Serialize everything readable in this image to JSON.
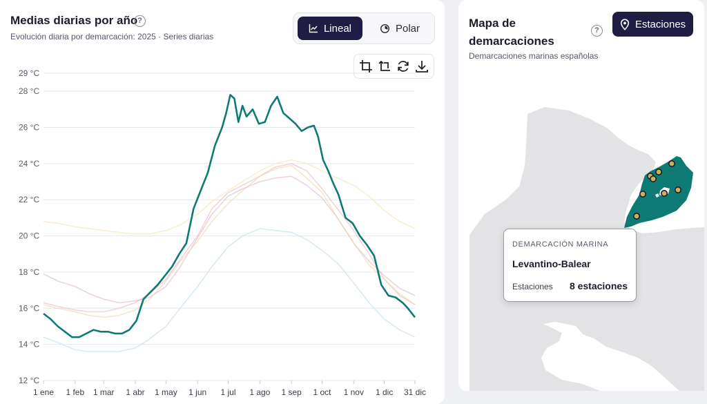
{
  "chart_panel": {
    "title": "Medias diarias por año",
    "subtitle": "Evolución diaria por demarcación: 2025 · Series diarias",
    "help_glyph": "?",
    "view_toggle": {
      "lineal_label": "Lineal",
      "polar_label": "Polar",
      "selected": "Lineal"
    },
    "toolbox_icons": [
      "crop-icon",
      "undo-crop-icon",
      "restore-icon",
      "download-icon"
    ]
  },
  "map_panel": {
    "title_line1": "Mapa de",
    "title_line2": "demarcaciones",
    "subtitle": "Demarcaciones marinas españolas",
    "help_glyph": "?",
    "stations_button_label": "Estaciones",
    "region_color": "#0e7a74",
    "tooltip": {
      "header": "DEMARCACIÓN MARINA",
      "name": "Levantino-Balear",
      "stations_label": "Estaciones",
      "stations_value": "8 estaciones"
    }
  },
  "chart_data": {
    "type": "line",
    "title": "",
    "xlabel": "",
    "ylabel": "",
    "ylim": [
      12,
      29
    ],
    "xlim": [
      1,
      365
    ],
    "y_ticks": [
      "12 °C",
      "14 °C",
      "16 °C",
      "18 °C",
      "20 °C",
      "22 °C",
      "24 °C",
      "26 °C",
      "28 °C",
      "29 °C"
    ],
    "y_tick_values": [
      12,
      14,
      16,
      18,
      20,
      22,
      24,
      26,
      28,
      29
    ],
    "x_ticks": [
      "1 ene",
      "1 feb",
      "1 mar",
      "1 abr",
      "1 may",
      "1 jun",
      "1 jul",
      "1 ago",
      "1 sep",
      "1 oct",
      "1 nov",
      "1 dic",
      "31 dic"
    ],
    "x_tick_days": [
      1,
      32,
      60,
      91,
      121,
      152,
      182,
      213,
      244,
      274,
      305,
      335,
      365
    ],
    "grid": true,
    "legend": "none",
    "series": [
      {
        "color": "#0e7a74",
        "width": 2.6,
        "opacity": 1,
        "x": [
          1,
          8,
          15,
          22,
          29,
          36,
          43,
          50,
          57,
          64,
          71,
          78,
          85,
          92,
          99,
          106,
          113,
          120,
          127,
          134,
          141,
          148,
          155,
          162,
          169,
          176,
          180,
          184,
          188,
          192,
          196,
          200,
          206,
          212,
          218,
          224,
          230,
          236,
          242,
          248,
          254,
          260,
          266,
          270,
          275,
          280,
          285,
          290,
          297,
          304,
          311,
          318,
          325,
          332,
          339,
          346,
          353,
          358,
          365
        ],
        "y": [
          15.7,
          15.4,
          15.0,
          14.7,
          14.4,
          14.4,
          14.6,
          14.8,
          14.7,
          14.7,
          14.6,
          14.6,
          14.8,
          15.3,
          16.5,
          16.9,
          17.3,
          17.8,
          18.3,
          19.0,
          19.6,
          21.5,
          22.5,
          23.5,
          25.0,
          26.0,
          26.8,
          27.8,
          27.6,
          26.3,
          27.2,
          26.6,
          27.0,
          26.2,
          26.3,
          27.2,
          27.7,
          26.8,
          26.5,
          26.2,
          25.8,
          26.0,
          26.1,
          25.5,
          24.2,
          23.6,
          22.9,
          22.3,
          21.0,
          20.7,
          20.0,
          19.5,
          18.9,
          17.3,
          16.7,
          16.6,
          16.3,
          16.0,
          15.5
        ]
      },
      {
        "color": "#e8b8c6",
        "width": 1.6,
        "opacity": 0.6,
        "x": [
          1,
          15,
          32,
          46,
          60,
          75,
          91,
          105,
          121,
          135,
          152,
          166,
          182,
          196,
          213,
          228,
          244,
          259,
          274,
          289,
          305,
          320,
          335,
          350,
          365
        ],
        "y": [
          16.3,
          16.1,
          15.9,
          15.8,
          15.8,
          16.0,
          16.3,
          16.8,
          17.6,
          18.7,
          20.0,
          21.5,
          22.4,
          22.8,
          23.3,
          23.8,
          24.0,
          23.6,
          22.6,
          21.5,
          20.3,
          19.0,
          17.6,
          16.7,
          16.2
        ]
      },
      {
        "color": "#d8b0c4",
        "width": 1.6,
        "opacity": 0.55,
        "x": [
          1,
          15,
          32,
          46,
          60,
          75,
          91,
          105,
          121,
          135,
          152,
          166,
          182,
          196,
          213,
          228,
          244,
          259,
          274,
          289,
          305,
          320,
          335,
          350,
          365
        ],
        "y": [
          17.9,
          17.5,
          17.2,
          16.8,
          16.5,
          16.3,
          16.4,
          16.6,
          17.2,
          18.3,
          19.9,
          21.2,
          22.2,
          22.6,
          23.0,
          23.2,
          23.3,
          22.8,
          22.1,
          21.0,
          19.6,
          18.6,
          17.8,
          17.1,
          16.7
        ]
      },
      {
        "color": "#f2d4a8",
        "width": 1.6,
        "opacity": 0.6,
        "x": [
          1,
          15,
          32,
          46,
          60,
          75,
          91,
          105,
          121,
          135,
          152,
          166,
          182,
          196,
          213,
          228,
          244,
          259,
          274,
          289,
          305,
          320,
          335,
          350,
          365
        ],
        "y": [
          16.2,
          16.0,
          15.8,
          15.6,
          15.5,
          15.6,
          15.9,
          16.5,
          17.5,
          18.6,
          19.7,
          20.8,
          21.8,
          22.5,
          23.3,
          23.7,
          23.9,
          23.2,
          22.4,
          21.0,
          19.6,
          18.4,
          17.6,
          16.8,
          16.2
        ]
      },
      {
        "color": "#f7e9c0",
        "width": 1.6,
        "opacity": 0.75,
        "x": [
          1,
          15,
          32,
          46,
          60,
          75,
          91,
          105,
          121,
          135,
          152,
          166,
          182,
          196,
          213,
          228,
          244,
          259,
          274,
          289,
          305,
          320,
          335,
          350,
          365
        ],
        "y": [
          20.8,
          20.7,
          20.5,
          20.4,
          20.3,
          20.2,
          20.1,
          20.1,
          20.3,
          20.6,
          21.2,
          21.9,
          22.5,
          23.0,
          23.6,
          24.0,
          24.2,
          24.0,
          23.6,
          23.2,
          22.8,
          22.2,
          21.4,
          20.8,
          20.4
        ]
      },
      {
        "color": "#c9e4ee",
        "width": 1.6,
        "opacity": 0.75,
        "x": [
          1,
          15,
          32,
          46,
          60,
          75,
          91,
          105,
          121,
          135,
          152,
          166,
          182,
          196,
          213,
          228,
          244,
          259,
          274,
          289,
          305,
          320,
          335,
          350,
          365
        ],
        "y": [
          14.4,
          14.1,
          13.7,
          13.6,
          13.6,
          13.6,
          13.8,
          14.3,
          15.0,
          16.0,
          17.2,
          18.3,
          19.4,
          20.0,
          20.4,
          20.3,
          20.2,
          19.8,
          19.2,
          18.5,
          17.4,
          16.3,
          15.4,
          14.8,
          14.4
        ]
      }
    ]
  }
}
